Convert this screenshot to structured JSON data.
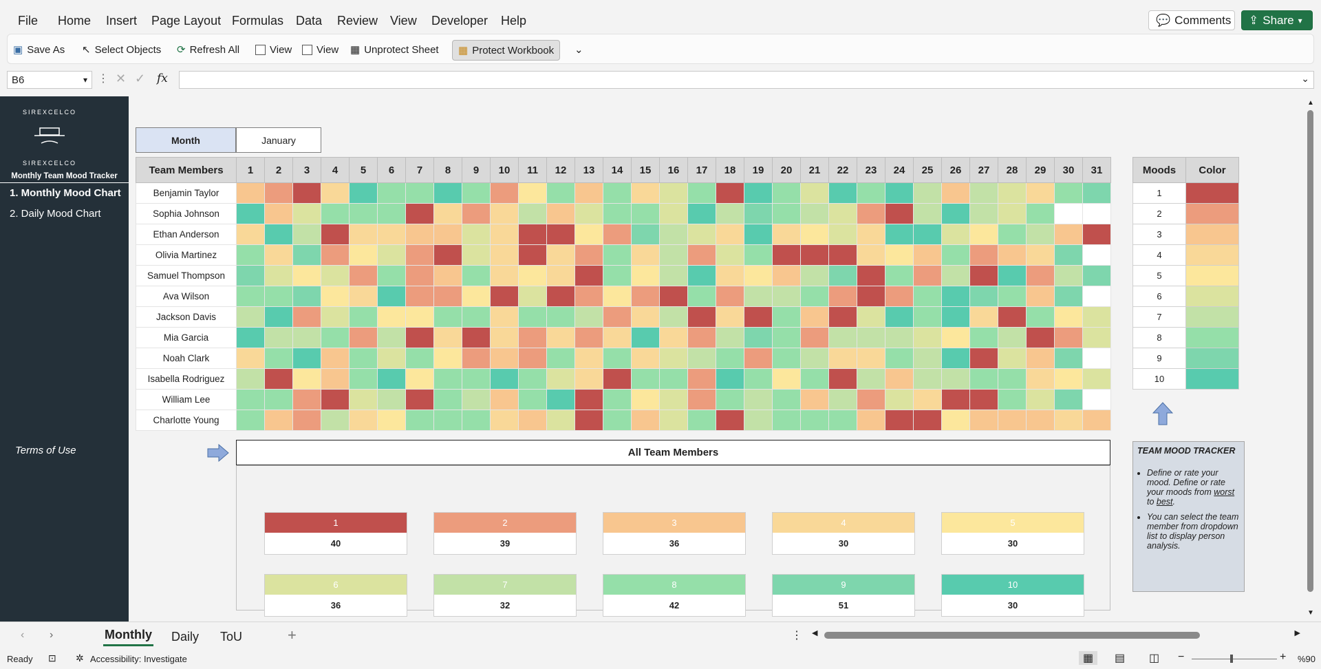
{
  "menu": {
    "tabs": [
      "File",
      "Home",
      "Insert",
      "Page Layout",
      "Formulas",
      "Data",
      "Review",
      "View",
      "Developer",
      "Help"
    ],
    "comments": "Comments",
    "share": "Share"
  },
  "ribbon": {
    "save_as": "Save As",
    "select_objects": "Select Objects",
    "refresh_all": "Refresh All",
    "view1": "View",
    "view2": "View",
    "unprotect_sheet": "Unprotect Sheet",
    "protect_workbook": "Protect Workbook"
  },
  "formula_bar": {
    "cell_ref": "B6",
    "fx": "fx",
    "value": ""
  },
  "sidebar": {
    "logo_text": "SIREXCELCO",
    "title": "Monthly Team Mood Tracker",
    "items": [
      "1. Monthly Mood Chart",
      "2. Daily Mood Chart"
    ],
    "terms": "Terms of Use"
  },
  "month_selector": {
    "label": "Month",
    "value": "January"
  },
  "grid": {
    "header": "Team Members",
    "days": [
      1,
      2,
      3,
      4,
      5,
      6,
      7,
      8,
      9,
      10,
      11,
      12,
      13,
      14,
      15,
      16,
      17,
      18,
      19,
      20,
      21,
      22,
      23,
      24,
      25,
      26,
      27,
      28,
      29,
      30,
      31
    ],
    "members": [
      {
        "name": "Benjamin Taylor",
        "moods": [
          3,
          2,
          1,
          4,
          10,
          8,
          8,
          10,
          8,
          2,
          5,
          8,
          3,
          8,
          4,
          6,
          8,
          1,
          10,
          8,
          6,
          10,
          8,
          10,
          7,
          3,
          7,
          6,
          4,
          8,
          9
        ]
      },
      {
        "name": "Sophia Johnson",
        "moods": [
          10,
          3,
          6,
          8,
          8,
          8,
          1,
          4,
          2,
          4,
          7,
          3,
          6,
          8,
          8,
          6,
          10,
          7,
          9,
          8,
          7,
          6,
          2,
          1,
          7,
          10,
          7,
          6,
          8,
          0,
          0
        ]
      },
      {
        "name": "Ethan Anderson",
        "moods": [
          4,
          10,
          7,
          1,
          4,
          4,
          3,
          3,
          6,
          4,
          1,
          1,
          5,
          2,
          9,
          7,
          6,
          4,
          10,
          4,
          5,
          6,
          4,
          10,
          10,
          6,
          5,
          8,
          7,
          3,
          1
        ]
      },
      {
        "name": "Olivia Martinez",
        "moods": [
          8,
          4,
          9,
          2,
          5,
          6,
          2,
          1,
          6,
          4,
          1,
          4,
          2,
          8,
          4,
          7,
          2,
          6,
          8,
          1,
          1,
          1,
          4,
          5,
          3,
          8,
          2,
          3,
          4,
          9,
          0
        ]
      },
      {
        "name": "Samuel Thompson",
        "moods": [
          9,
          6,
          5,
          6,
          2,
          8,
          2,
          3,
          8,
          4,
          5,
          4,
          1,
          8,
          5,
          7,
          10,
          4,
          5,
          3,
          7,
          9,
          1,
          8,
          2,
          7,
          1,
          10,
          2,
          7,
          9
        ]
      },
      {
        "name": "Ava Wilson",
        "moods": [
          8,
          8,
          9,
          5,
          4,
          10,
          2,
          2,
          5,
          1,
          6,
          1,
          2,
          5,
          2,
          1,
          8,
          2,
          7,
          7,
          8,
          2,
          1,
          2,
          8,
          10,
          9,
          8,
          3,
          9,
          0
        ]
      },
      {
        "name": "Jackson Davis",
        "moods": [
          7,
          10,
          2,
          6,
          8,
          5,
          5,
          8,
          8,
          4,
          8,
          8,
          7,
          2,
          4,
          7,
          1,
          4,
          1,
          8,
          3,
          1,
          6,
          10,
          8,
          10,
          4,
          1,
          8,
          5,
          6
        ]
      },
      {
        "name": "Mia Garcia",
        "moods": [
          10,
          7,
          7,
          8,
          2,
          7,
          1,
          4,
          1,
          4,
          2,
          4,
          2,
          4,
          10,
          4,
          2,
          7,
          9,
          8,
          2,
          7,
          7,
          7,
          6,
          5,
          8,
          7,
          1,
          2,
          6
        ]
      },
      {
        "name": "Noah Clark",
        "moods": [
          4,
          8,
          10,
          3,
          8,
          6,
          8,
          5,
          2,
          3,
          2,
          8,
          4,
          8,
          4,
          6,
          7,
          8,
          2,
          8,
          7,
          4,
          4,
          8,
          7,
          10,
          1,
          6,
          3,
          9,
          0
        ]
      },
      {
        "name": "Isabella Rodriguez",
        "moods": [
          7,
          1,
          5,
          3,
          8,
          10,
          5,
          8,
          8,
          10,
          8,
          6,
          4,
          1,
          8,
          8,
          2,
          10,
          8,
          5,
          8,
          1,
          7,
          3,
          7,
          7,
          8,
          8,
          4,
          5,
          6
        ]
      },
      {
        "name": "William Lee",
        "moods": [
          8,
          8,
          2,
          1,
          6,
          7,
          1,
          8,
          7,
          3,
          8,
          10,
          1,
          8,
          5,
          6,
          2,
          8,
          7,
          8,
          3,
          7,
          2,
          6,
          4,
          1,
          1,
          8,
          6,
          9,
          0
        ]
      },
      {
        "name": "Charlotte Young",
        "moods": [
          8,
          3,
          2,
          7,
          4,
          5,
          8,
          8,
          8,
          4,
          3,
          6,
          1,
          8,
          3,
          6,
          8,
          1,
          7,
          8,
          8,
          8,
          3,
          1,
          1,
          5,
          3,
          3,
          3,
          4,
          3
        ]
      }
    ]
  },
  "legend": {
    "moods_header": "Moods",
    "color_header": "Color",
    "levels": [
      1,
      2,
      3,
      4,
      5,
      6,
      7,
      8,
      9,
      10
    ],
    "colors": [
      "#c0504d",
      "#ec9c7d",
      "#f8c68f",
      "#f9d898",
      "#fce79c",
      "#dbe39f",
      "#c2e1a7",
      "#95dfa9",
      "#7ed6ad",
      "#58cbae"
    ]
  },
  "summary": {
    "title": "All Team Members",
    "cards": [
      {
        "level": "1",
        "count": "40"
      },
      {
        "level": "2",
        "count": "39"
      },
      {
        "level": "3",
        "count": "36"
      },
      {
        "level": "4",
        "count": "30"
      },
      {
        "level": "5",
        "count": "30"
      },
      {
        "level": "6",
        "count": "36"
      },
      {
        "level": "7",
        "count": "32"
      },
      {
        "level": "8",
        "count": "42"
      },
      {
        "level": "9",
        "count": "51"
      },
      {
        "level": "10",
        "count": "30"
      }
    ]
  },
  "info_box": {
    "title": "TEAM MOOD TRACKER",
    "bullet1_prefix": "Define or rate your mood. Define or rate your moods from ",
    "bullet1_worst": "worst",
    "bullet1_mid": " to ",
    "bullet1_best": "best",
    "bullet1_end": ".",
    "bullet2": "You can select the team member from dropdown list to display person analysis."
  },
  "sheet_tabs": [
    "Monthly",
    "Daily",
    "ToU"
  ],
  "status": {
    "ready": "Ready",
    "accessibility": "Accessibility: Investigate",
    "zoom": "%90"
  }
}
